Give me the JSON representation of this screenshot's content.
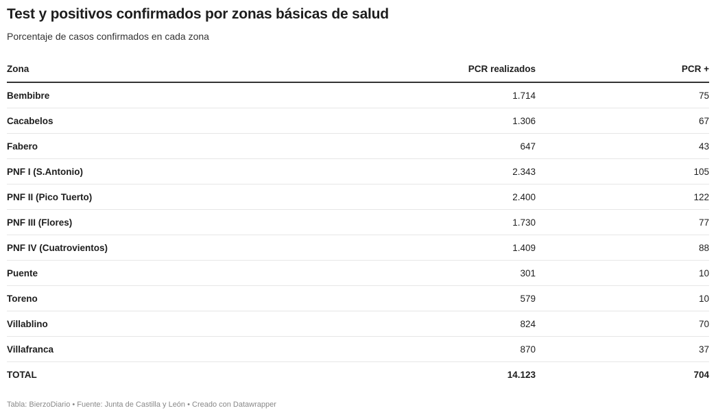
{
  "header": {
    "title": "Test y positivos confirmados por zonas básicas de salud",
    "subtitle": "Porcentaje de casos confirmados en cada zona"
  },
  "chart_data": {
    "type": "table",
    "columns": [
      "Zona",
      "PCR realizados",
      "PCR +"
    ],
    "rows": [
      {
        "zona": "Bembibre",
        "pcr": "1.714",
        "positivos": "75"
      },
      {
        "zona": "Cacabelos",
        "pcr": "1.306",
        "positivos": "67"
      },
      {
        "zona": "Fabero",
        "pcr": "647",
        "positivos": "43"
      },
      {
        "zona": "PNF I (S.Antonio)",
        "pcr": "2.343",
        "positivos": "105"
      },
      {
        "zona": "PNF II (Pico Tuerto)",
        "pcr": "2.400",
        "positivos": "122"
      },
      {
        "zona": "PNF III (Flores)",
        "pcr": "1.730",
        "positivos": "77"
      },
      {
        "zona": "PNF IV (Cuatrovientos)",
        "pcr": "1.409",
        "positivos": "88"
      },
      {
        "zona": "Puente",
        "pcr": "301",
        "positivos": "10"
      },
      {
        "zona": "Toreno",
        "pcr": "579",
        "positivos": "10"
      },
      {
        "zona": "Villablino",
        "pcr": "824",
        "positivos": "70"
      },
      {
        "zona": "Villafranca",
        "pcr": "870",
        "positivos": "37"
      },
      {
        "zona": "TOTAL",
        "pcr": "14.123",
        "positivos": "704"
      }
    ]
  },
  "footer": {
    "text": "Tabla: BierzoDiario • Fuente: Junta de Castilla y León • Creado con Datawrapper"
  }
}
